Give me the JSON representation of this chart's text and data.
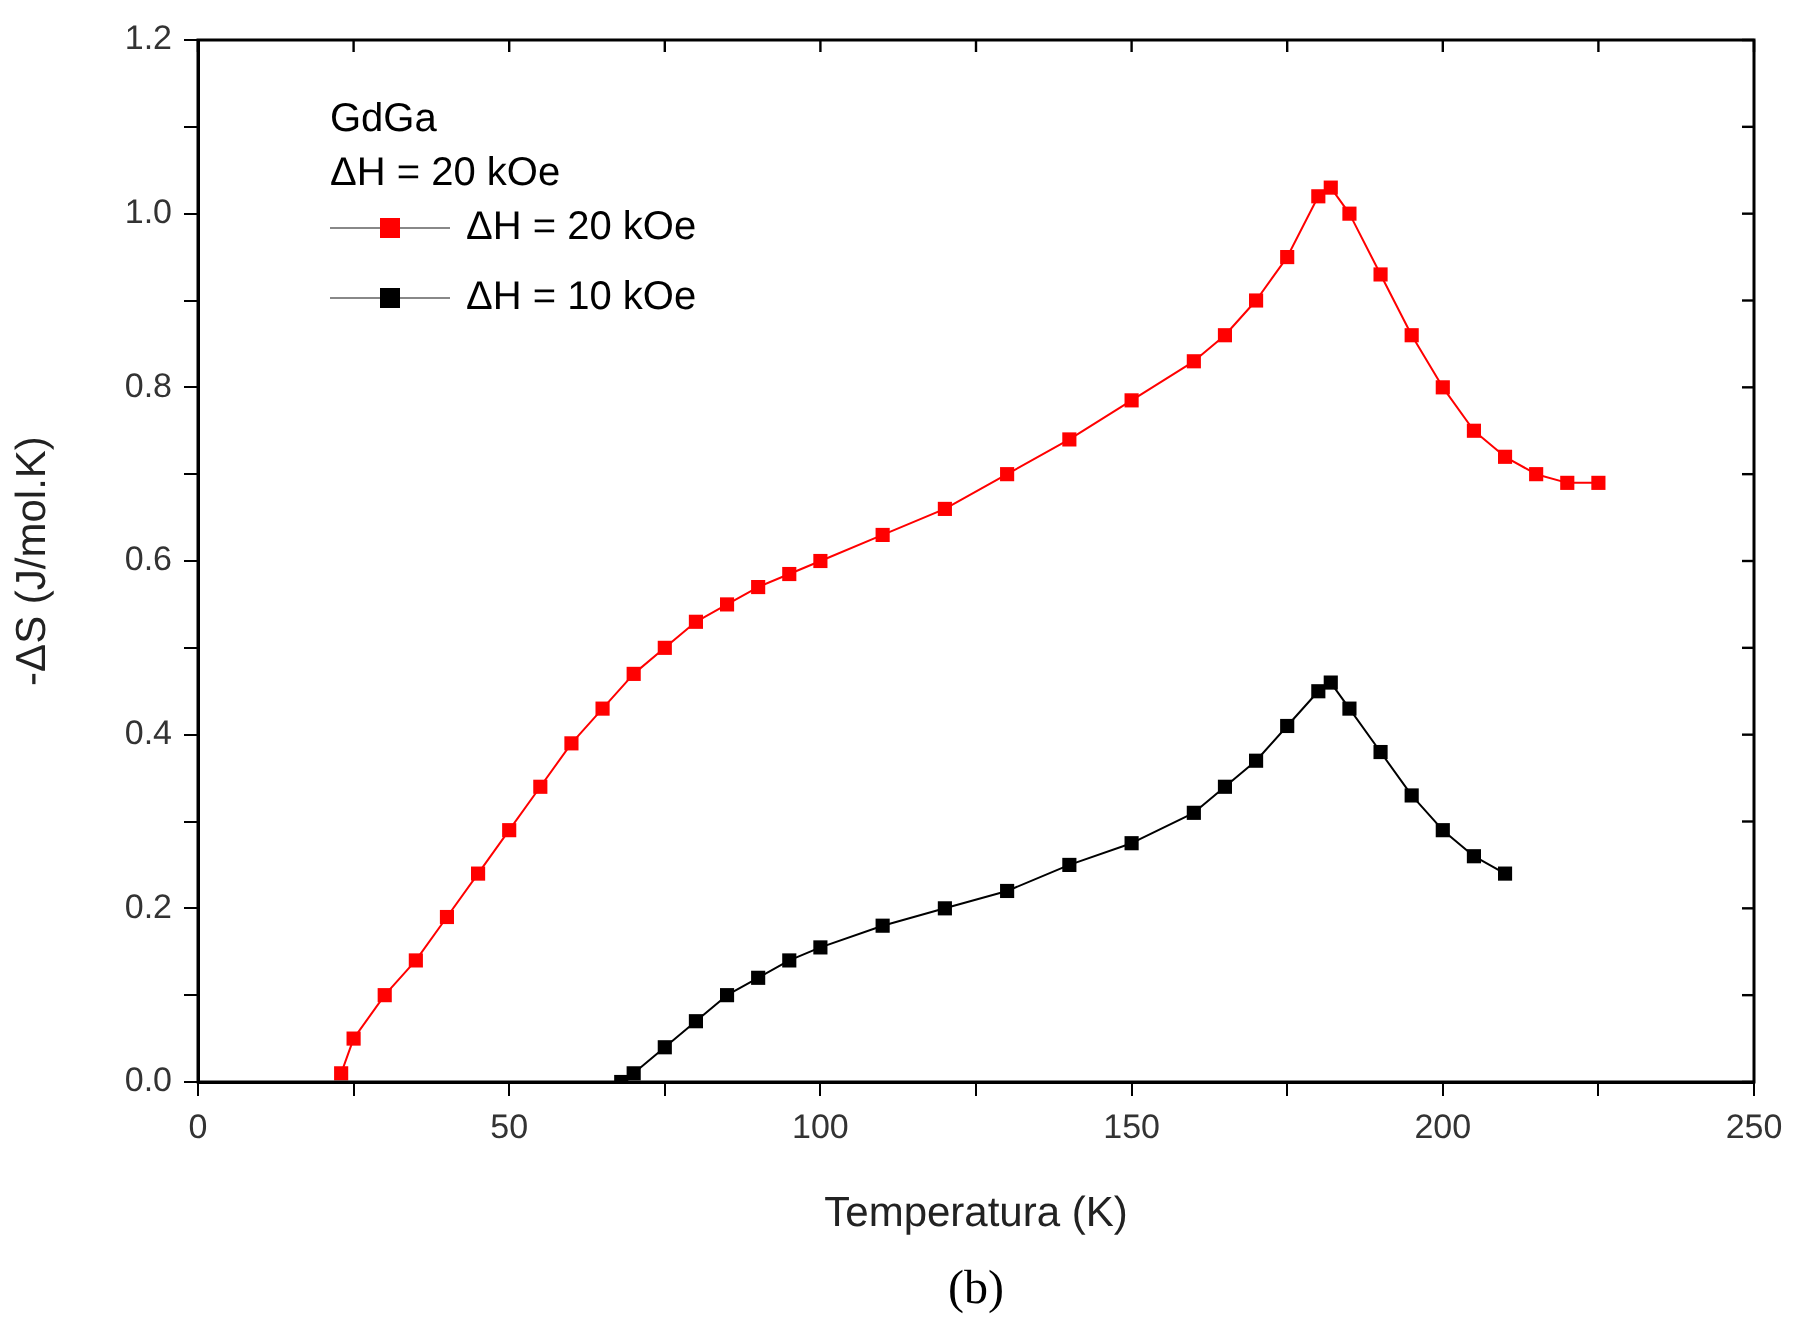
{
  "chart_data": {
    "type": "line",
    "xlabel": "Temperatura (K)",
    "ylabel": "-ΔS (J/mol.K)",
    "annotations": [
      "GdGa",
      "ΔH = 20 kOe",
      "(b)"
    ],
    "xlim": [
      0,
      250
    ],
    "xticks": [
      0,
      {
        "value": 25,
        "label": null
      },
      50,
      {
        "value": 75,
        "label": null
      },
      100,
      {
        "value": 125,
        "label": null
      },
      150,
      {
        "value": 175,
        "label": null
      },
      200,
      {
        "value": 225,
        "label": null
      },
      250
    ],
    "ylim": [
      0,
      1.2
    ],
    "yticks": [
      {
        "value": 0,
        "label": "0.0"
      },
      {
        "value": 0.1,
        "label": null
      },
      {
        "value": 0.2,
        "label": "0.2"
      },
      {
        "value": 0.3,
        "label": null
      },
      {
        "value": 0.4,
        "label": "0.4"
      },
      {
        "value": 0.5,
        "label": null
      },
      {
        "value": 0.6,
        "label": "0.6"
      },
      {
        "value": 0.7,
        "label": null
      },
      {
        "value": 0.8,
        "label": "0.8"
      },
      {
        "value": 0.9,
        "label": null
      },
      {
        "value": 1.0,
        "label": "1.0"
      },
      {
        "value": 1.1,
        "label": null
      },
      {
        "value": 1.2,
        "label": "1.2"
      }
    ],
    "grid": false,
    "legend": "top left",
    "marker": "square",
    "line_style": "solid",
    "series": [
      {
        "name": "ΔH = 20 kOe",
        "color": "#ff0000",
        "x": [
          23,
          25,
          30,
          35,
          40,
          45,
          50,
          55,
          60,
          65,
          70,
          75,
          80,
          85,
          90,
          95,
          100,
          110,
          120,
          130,
          140,
          150,
          160,
          165,
          170,
          175,
          180,
          182,
          185,
          190,
          195,
          200,
          205,
          210,
          215,
          220,
          225
        ],
        "values": [
          0.01,
          0.05,
          0.1,
          0.14,
          0.19,
          0.24,
          0.29,
          0.34,
          0.39,
          0.43,
          0.47,
          0.5,
          0.53,
          0.55,
          0.57,
          0.585,
          0.6,
          0.63,
          0.66,
          0.7,
          0.74,
          0.785,
          0.83,
          0.86,
          0.9,
          0.95,
          1.02,
          1.03,
          1.0,
          0.93,
          0.86,
          0.8,
          0.75,
          0.72,
          0.7,
          0.69,
          0.69
        ]
      },
      {
        "name": "ΔH = 10 kOe",
        "color": "#000000",
        "x": [
          68,
          70,
          75,
          80,
          85,
          90,
          95,
          100,
          110,
          120,
          130,
          140,
          150,
          160,
          165,
          170,
          175,
          180,
          182,
          185,
          190,
          195,
          200,
          205,
          210
        ],
        "values": [
          0.0,
          0.01,
          0.04,
          0.07,
          0.1,
          0.12,
          0.14,
          0.155,
          0.18,
          0.2,
          0.22,
          0.25,
          0.275,
          0.31,
          0.34,
          0.37,
          0.41,
          0.45,
          0.46,
          0.43,
          0.38,
          0.33,
          0.29,
          0.26,
          0.24
        ]
      }
    ]
  }
}
